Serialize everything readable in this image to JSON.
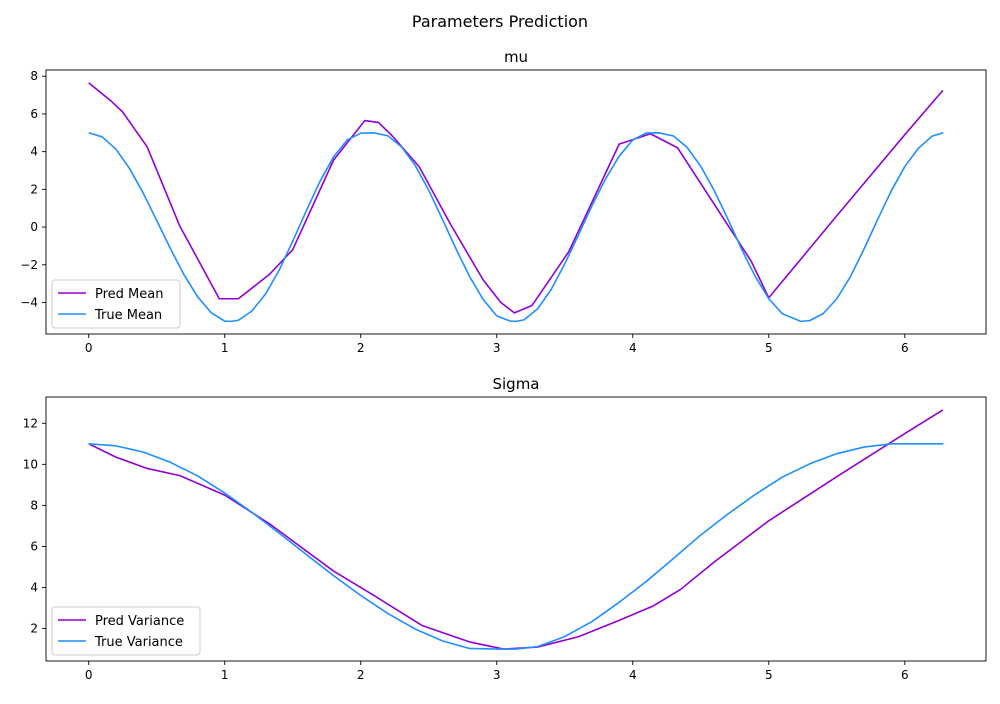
{
  "figure": {
    "suptitle": "Parameters Prediction"
  },
  "chart_data": [
    {
      "type": "line",
      "title": "mu",
      "xlabel": "",
      "ylabel": "",
      "xlim": [
        -0.314,
        6.597
      ],
      "ylim": [
        -5.67,
        8.33
      ],
      "xticks": [
        0,
        1,
        2,
        3,
        4,
        5,
        6
      ],
      "yticks": [
        -4,
        -2,
        0,
        2,
        4,
        6,
        8
      ],
      "grid": false,
      "legend": "lower-left",
      "series": [
        {
          "name": "Pred Mean",
          "color": "#9400d3",
          "x": [
            0,
            0.17,
            0.25,
            0.43,
            0.67,
            0.96,
            1.1,
            1.33,
            1.5,
            1.8,
            2.03,
            2.13,
            2.23,
            2.43,
            2.66,
            2.9,
            3.03,
            3.13,
            3.26,
            3.53,
            3.9,
            4.13,
            4.33,
            4.6,
            4.87,
            5.0,
            5.5,
            6.0,
            6.28
          ],
          "y": [
            7.65,
            6.65,
            6.1,
            4.25,
            0.05,
            -3.8,
            -3.8,
            -2.5,
            -1.2,
            3.55,
            5.65,
            5.55,
            4.85,
            3.2,
            0.15,
            -2.8,
            -4.0,
            -4.55,
            -4.15,
            -1.3,
            4.4,
            4.95,
            4.2,
            1.2,
            -1.8,
            -3.75,
            0.6,
            4.9,
            7.25
          ]
        },
        {
          "name": "True Mean",
          "color": "#1e90ff",
          "x": [
            0,
            0.1,
            0.2,
            0.3,
            0.4,
            0.5,
            0.6,
            0.7,
            0.8,
            0.9,
            1.0,
            1.047,
            1.1,
            1.2,
            1.3,
            1.4,
            1.5,
            1.6,
            1.7,
            1.8,
            1.9,
            2.0,
            2.094,
            2.2,
            2.3,
            2.4,
            2.5,
            2.6,
            2.7,
            2.8,
            2.9,
            3.0,
            3.1,
            3.142,
            3.2,
            3.3,
            3.4,
            3.5,
            3.6,
            3.7,
            3.8,
            3.9,
            4.0,
            4.1,
            4.189,
            4.3,
            4.4,
            4.5,
            4.6,
            4.7,
            4.8,
            4.9,
            5.0,
            5.1,
            5.236,
            5.3,
            5.4,
            5.5,
            5.6,
            5.7,
            5.8,
            5.9,
            6.0,
            6.1,
            6.2,
            6.283
          ],
          "y": [
            5.0,
            4.78,
            4.13,
            3.11,
            1.81,
            0.35,
            -1.13,
            -2.52,
            -3.69,
            -4.54,
            -4.99,
            -5.0,
            -4.94,
            -4.45,
            -3.55,
            -2.29,
            -0.75,
            0.87,
            2.42,
            3.72,
            4.62,
            4.98,
            5.0,
            4.84,
            4.25,
            3.28,
            1.95,
            0.42,
            -1.15,
            -2.62,
            -3.84,
            -4.71,
            -4.99,
            -5.0,
            -4.92,
            -4.34,
            -3.31,
            -1.95,
            -0.43,
            1.13,
            2.56,
            3.76,
            4.62,
            4.99,
            5.0,
            4.83,
            4.22,
            3.22,
            1.92,
            0.42,
            -1.17,
            -2.61,
            -3.8,
            -4.6,
            -5.0,
            -4.96,
            -4.59,
            -3.8,
            -2.63,
            -1.17,
            0.4,
            1.91,
            3.21,
            4.18,
            4.82,
            5.0
          ]
        }
      ]
    },
    {
      "type": "line",
      "title": "Sigma",
      "xlabel": "",
      "ylabel": "",
      "xlim": [
        -0.314,
        6.597
      ],
      "ylim": [
        0.42,
        13.28
      ],
      "xticks": [
        0,
        1,
        2,
        3,
        4,
        5,
        6
      ],
      "yticks": [
        2,
        4,
        6,
        8,
        10,
        12
      ],
      "grid": false,
      "legend": "lower-left",
      "series": [
        {
          "name": "Pred Variance",
          "color": "#9400d3",
          "x": [
            0,
            0.2,
            0.43,
            0.67,
            1.0,
            1.33,
            1.8,
            2.1,
            2.45,
            2.8,
            3.05,
            3.3,
            3.6,
            3.9,
            4.15,
            4.35,
            4.6,
            5.0,
            5.5,
            6.0,
            6.28
          ],
          "y": [
            11.0,
            10.35,
            9.8,
            9.45,
            8.5,
            7.1,
            4.8,
            3.6,
            2.15,
            1.35,
            1.0,
            1.1,
            1.6,
            2.4,
            3.1,
            3.9,
            5.25,
            7.25,
            9.4,
            11.5,
            12.65
          ]
        },
        {
          "name": "True Variance",
          "color": "#1e90ff",
          "x": [
            0,
            0.2,
            0.4,
            0.6,
            0.8,
            1.0,
            1.2,
            1.4,
            1.6,
            1.8,
            2.0,
            2.2,
            2.4,
            2.6,
            2.8,
            3.0,
            3.142,
            3.3,
            3.5,
            3.7,
            3.9,
            4.1,
            4.3,
            4.5,
            4.7,
            4.9,
            5.1,
            5.3,
            5.5,
            5.7,
            5.9,
            6.1,
            6.283
          ],
          "y": [
            11.0,
            10.9,
            10.6,
            10.1,
            9.44,
            8.6,
            7.66,
            6.65,
            5.61,
            4.58,
            3.61,
            2.73,
            1.98,
            1.4,
            1.03,
            1.0,
            1.0,
            1.12,
            1.61,
            2.34,
            3.28,
            4.3,
            5.42,
            6.56,
            7.58,
            8.53,
            9.38,
            10.02,
            10.52,
            10.84,
            11.0,
            11.0,
            11.0
          ]
        }
      ]
    }
  ]
}
